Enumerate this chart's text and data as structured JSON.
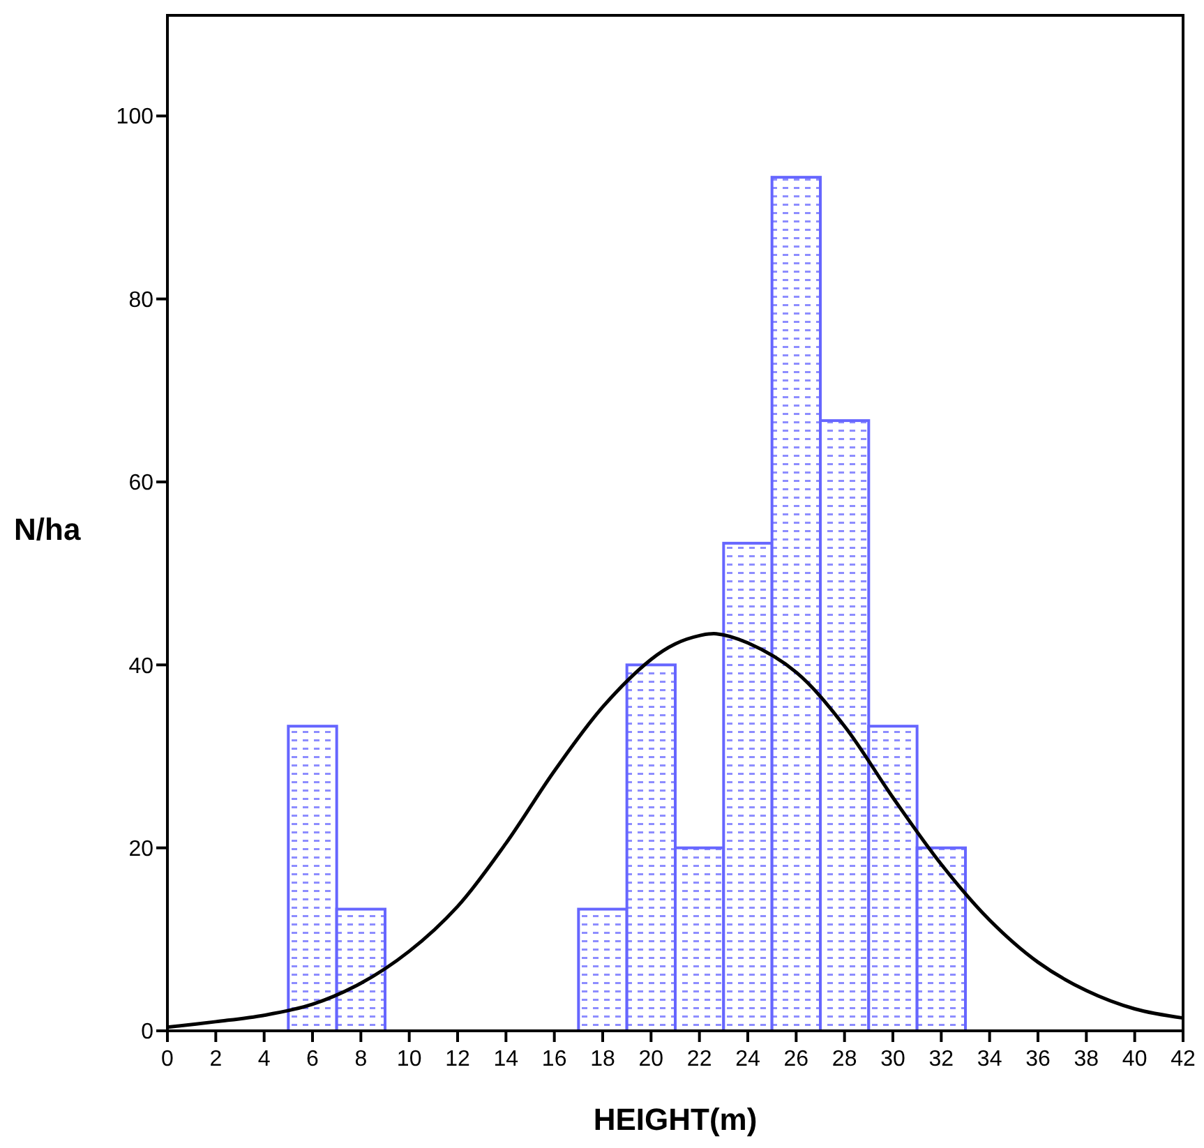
{
  "chart_data": {
    "type": "histogram",
    "xlabel": "HEIGHT(m)",
    "ylabel": "N/ha",
    "bins": [
      5,
      7,
      9,
      11,
      13,
      15,
      17,
      19,
      21,
      23,
      25,
      27,
      29,
      31,
      33
    ],
    "series": [
      {
        "color": "#6666ff",
        "values": [
          33.3,
          13.3,
          0,
          0,
          0,
          0,
          13.3,
          40,
          20,
          53.3,
          93.3,
          66.7,
          33.3,
          20
        ]
      },
      {
        "type": "line",
        "color": "#000000",
        "x": [
          0,
          2,
          4,
          6,
          8,
          10,
          12,
          14,
          16,
          18,
          20,
          21,
          22,
          22.7,
          24,
          26,
          28,
          30,
          32,
          34,
          36,
          38,
          40,
          42
        ],
        "values": [
          0.4,
          1,
          1.7,
          2.9,
          5.2,
          8.7,
          13.6,
          20.5,
          28.4,
          35.4,
          40.6,
          42.3,
          43.2,
          43.4,
          42.4,
          39.2,
          33.3,
          25.5,
          18.2,
          12.1,
          7.5,
          4.4,
          2.4,
          1.4
        ]
      }
    ],
    "xlim": [
      0,
      42
    ],
    "xticks": [
      0,
      2,
      4,
      6,
      8,
      10,
      12,
      14,
      16,
      18,
      20,
      22,
      24,
      26,
      28,
      30,
      32,
      34,
      36,
      38,
      40,
      42
    ],
    "ylim": [
      0,
      111
    ],
    "yticks": [
      0,
      20,
      40,
      60,
      80,
      100
    ],
    "grid": false,
    "marker": "none",
    "line_style": "solid"
  }
}
